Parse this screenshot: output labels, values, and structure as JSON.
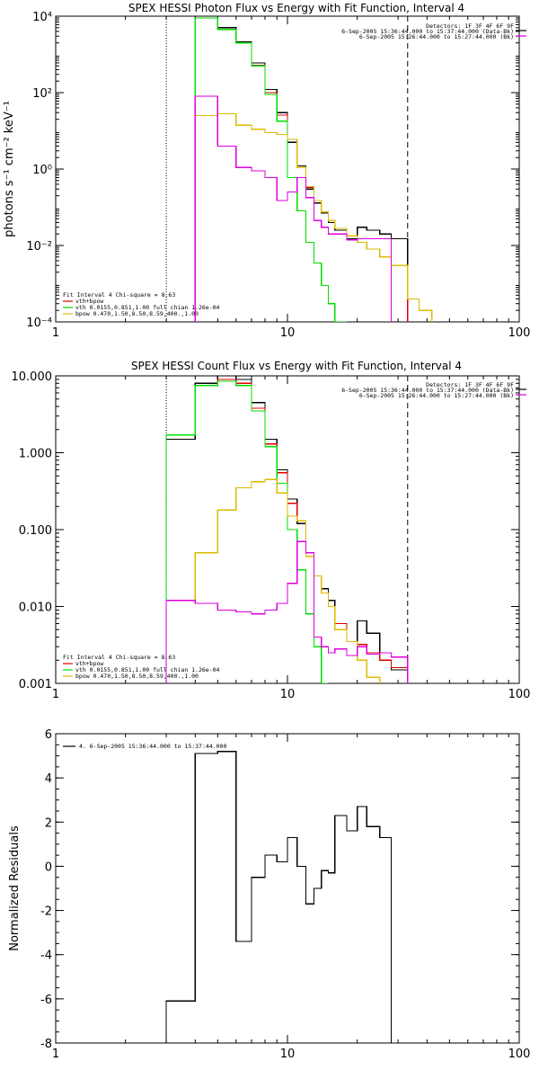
{
  "colors": {
    "data": "#000000",
    "total": "#dd0000",
    "vth": "#00dd00",
    "bpow": "#ddbb00",
    "bk": "#dd00dd",
    "axis": "#000000"
  },
  "chart_data": [
    {
      "type": "line",
      "title": "SPEX HESSI Photon Flux vs Energy with Fit Function, Interval 4",
      "ylabel": "photons s⁻¹ cm⁻² keV⁻¹",
      "xlabel": "",
      "xscale": "log",
      "yscale": "log",
      "xlim": [
        1,
        100
      ],
      "ylim": [
        0.0001,
        10000
      ],
      "x_ticks": [
        "1",
        "10",
        "100"
      ],
      "y_ticks": [
        "10⁻⁴",
        "10⁻²",
        "10⁰",
        "10²",
        "10⁴"
      ],
      "header": "Detectors: 1F 3F 4F 6F 9F",
      "legend_lines": [
        "6-Sep-2005 15:36:44.000 to 15:37:44.000 (Data-Bk)",
        "6-Sep-2005 15:26:44.000 to 15:27:44.000 (Bk)"
      ],
      "fit_legend": [
        "Fit Interval 4   Chi-square = 8.63",
        "vth+bpow",
        "vth 0.0155,0.851,1.00  full chian 1.26e-04",
        "bpow 0.470,1.50,8.50,8.59,400.,1.00"
      ],
      "dashed_x": 33,
      "edges": [
        3,
        4,
        5,
        6,
        7,
        8,
        9,
        10,
        11,
        12,
        13,
        14,
        15,
        16,
        18,
        20,
        22,
        25,
        28,
        33,
        37,
        42
      ],
      "series": [
        {
          "name": "Data-Bk",
          "color": "#000000",
          "values": [
            null,
            9000,
            5000,
            2100,
            600,
            120,
            30,
            5.0,
            1.2,
            0.3,
            0.13,
            0.07,
            0.04,
            0.025,
            0.015,
            0.03,
            0.025,
            0.02,
            0.015,
            null,
            null
          ]
        },
        {
          "name": "vth+bpow",
          "color": "#dd0000",
          "values": [
            null,
            9000,
            4500,
            2000,
            520,
            100,
            26,
            6.0,
            1.1,
            0.33,
            0.15,
            0.075,
            0.045,
            0.028,
            0.018,
            0.012,
            0.008,
            0.005,
            0.003,
            null,
            null
          ]
        },
        {
          "name": "vth",
          "color": "#00dd00",
          "values": [
            null,
            9000,
            4500,
            2000,
            500,
            90,
            18,
            0.6,
            0.08,
            0.012,
            0.0035,
            0.0009,
            0.0003,
            8e-05,
            null,
            null,
            null,
            null,
            null,
            null,
            null
          ]
        },
        {
          "name": "bpow",
          "color": "#ddbb00",
          "values": [
            null,
            25,
            28,
            14,
            11,
            9,
            8,
            6.0,
            1.1,
            0.35,
            0.15,
            0.075,
            0.045,
            0.028,
            0.018,
            0.012,
            0.008,
            0.005,
            0.003,
            0.0004,
            0.0002
          ]
        },
        {
          "name": "Bk",
          "color": "#dd00dd",
          "values": [
            null,
            80,
            4.0,
            1.1,
            0.9,
            0.6,
            0.15,
            0.25,
            0.6,
            0.18,
            0.045,
            0.03,
            0.02,
            0.02,
            0.014,
            0.015,
            0.015,
            0.015,
            null,
            null,
            null
          ]
        }
      ]
    },
    {
      "type": "line",
      "title": "SPEX HESSI Count Flux vs Energy with Fit Function, Interval 4",
      "ylabel": "",
      "xlabel": "",
      "xscale": "log",
      "yscale": "log",
      "xlim": [
        1,
        100
      ],
      "ylim": [
        0.001,
        10
      ],
      "x_ticks": [
        "1",
        "10",
        "100"
      ],
      "y_ticks": [
        "0.001",
        "0.010",
        "0.100",
        "1.000",
        "10.000"
      ],
      "header": "Detectors: 1F 3F 4F 6F 9F",
      "legend_lines": [
        "6-Sep-2005 15:36:44.000 to 15:37:44.000 (Data-Bk)",
        "6-Sep-2005 15:26:44.000 to 15:27:44.000 (Bk)"
      ],
      "fit_legend": [
        "Fit Interval 4   Chi-square = 8.63",
        "vth+bpow",
        "vth 0.0155,0.851,1.00  full chian 1.26e-04",
        "bpow 0.470,1.50,8.50,8.59,400.,1.00"
      ],
      "dashed_x": 33,
      "edges": [
        3,
        4,
        5,
        6,
        7,
        8,
        9,
        10,
        11,
        12,
        13,
        14,
        15,
        16,
        18,
        20,
        22,
        25,
        28,
        33,
        37,
        42
      ],
      "series": [
        {
          "name": "Data-Bk",
          "color": "#000000",
          "values": [
            1.5,
            8.0,
            10.0,
            9.0,
            4.5,
            1.5,
            0.6,
            0.25,
            0.12,
            0.045,
            0.025,
            0.017,
            0.012,
            0.006,
            0.0035,
            0.0065,
            0.0045,
            0.002,
            0.0015,
            null,
            null
          ]
        },
        {
          "name": "vth+bpow",
          "color": "#dd0000",
          "values": [
            1.7,
            7.5,
            9.0,
            8.0,
            3.8,
            1.3,
            0.55,
            0.22,
            0.13,
            0.05,
            0.025,
            0.015,
            0.01,
            0.006,
            0.0035,
            0.0032,
            0.0025,
            0.002,
            0.0016,
            null,
            null
          ]
        },
        {
          "name": "vth",
          "color": "#00dd00",
          "values": [
            1.7,
            7.5,
            8.5,
            7.5,
            3.5,
            1.2,
            0.4,
            0.1,
            0.03,
            0.008,
            0.003,
            0.001,
            null,
            null,
            null,
            null,
            null,
            null,
            null,
            null,
            null
          ]
        },
        {
          "name": "bpow",
          "color": "#ddbb00",
          "values": [
            0.012,
            0.05,
            0.18,
            0.35,
            0.42,
            0.45,
            0.3,
            0.15,
            0.13,
            0.045,
            0.025,
            0.015,
            0.01,
            0.005,
            0.0035,
            0.002,
            0.0012,
            null,
            null,
            null,
            null
          ]
        },
        {
          "name": "Bk",
          "color": "#dd00dd",
          "values": [
            0.012,
            0.011,
            0.009,
            0.0085,
            0.008,
            0.009,
            0.011,
            0.02,
            0.07,
            0.05,
            0.004,
            0.003,
            0.0025,
            0.0028,
            0.0023,
            0.003,
            0.0024,
            0.0025,
            0.0022,
            null,
            null
          ]
        }
      ]
    },
    {
      "type": "line",
      "title": "",
      "ylabel": "Normalized Residuals",
      "xlabel": "",
      "xscale": "log",
      "yscale": "linear",
      "xlim": [
        1,
        100
      ],
      "ylim": [
        -8,
        6
      ],
      "x_ticks": [
        "1",
        "10",
        "100"
      ],
      "y_ticks": [
        "-8",
        "-6",
        "-4",
        "-2",
        "0",
        "2",
        "4",
        "6"
      ],
      "legend_lines": [
        "4.  6-Sep-2005 15:36:44.000 to 15:37:44.000"
      ],
      "edges": [
        3,
        4,
        5,
        6,
        7,
        8,
        9,
        10,
        11,
        12,
        13,
        14,
        15,
        16,
        18,
        20,
        22,
        25,
        28,
        33
      ],
      "series": [
        {
          "name": "4.  6-Sep-2005 15:36:44.000 to 15:37:44.000",
          "color": "#000000",
          "values": [
            -6.1,
            5.1,
            5.2,
            -3.4,
            -0.5,
            0.5,
            0.2,
            1.3,
            0.0,
            -1.7,
            -1.0,
            -0.2,
            -0.3,
            2.3,
            1.6,
            2.7,
            1.8,
            1.3,
            null
          ]
        }
      ]
    }
  ]
}
